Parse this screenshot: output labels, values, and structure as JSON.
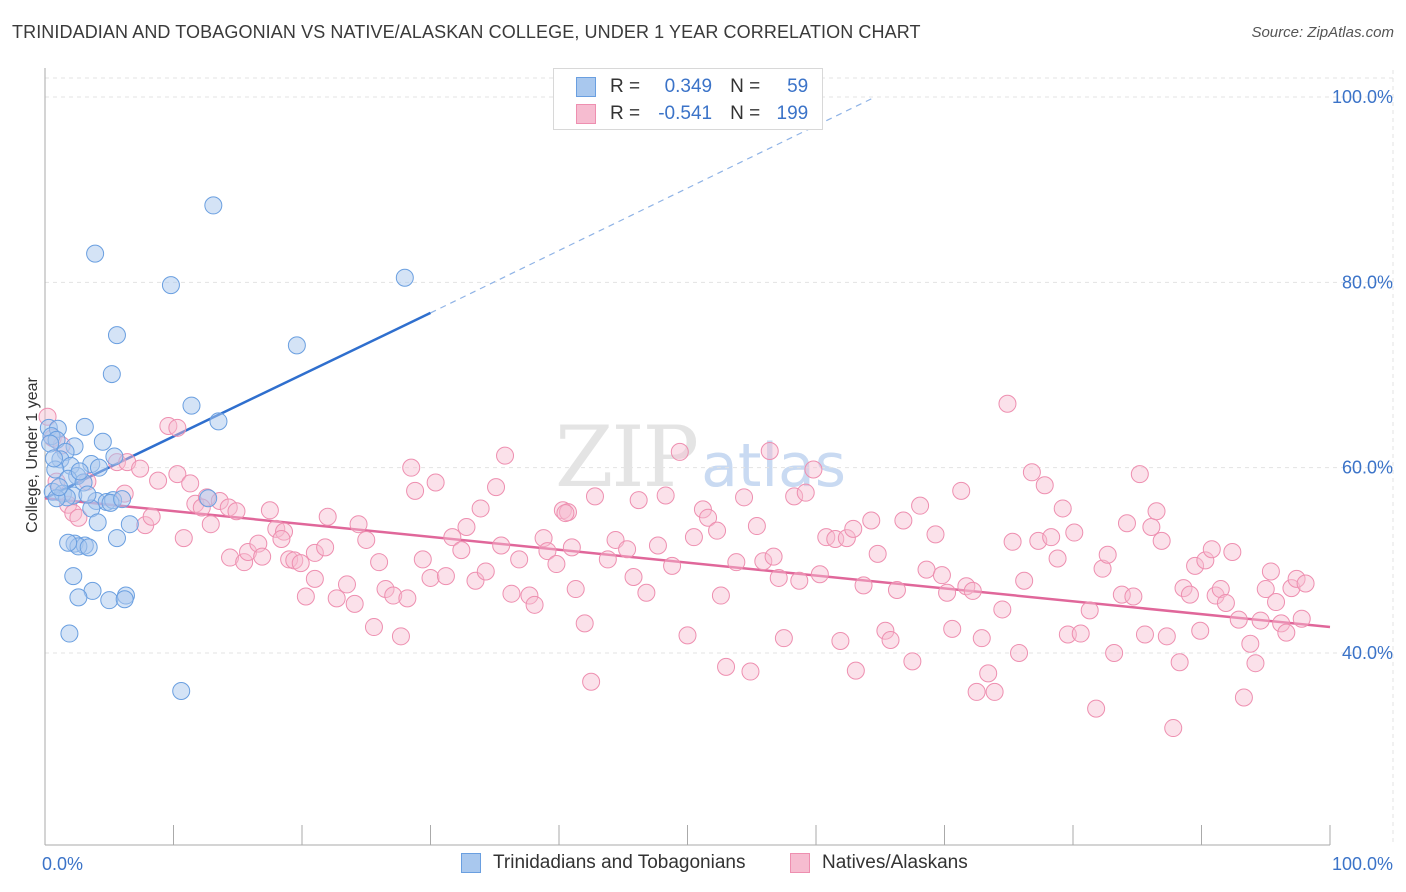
{
  "header": {
    "title": "TRINIDADIAN AND TOBAGONIAN VS NATIVE/ALASKAN COLLEGE, UNDER 1 YEAR CORRELATION CHART",
    "source": "Source: ZipAtlas.com"
  },
  "watermark": {
    "zip": "ZIP",
    "atlas": "atlas"
  },
  "stats_legend": {
    "r_label": "R =",
    "n_label": "N =",
    "rows": [
      {
        "r": "0.349",
        "n": "59"
      },
      {
        "r": "-0.541",
        "n": "199"
      }
    ]
  },
  "colors": {
    "blue_fill": "#a9c8ee",
    "blue_stroke": "#6a9fe0",
    "blue_line": "#2f6fce",
    "pink_fill": "#f6bcd0",
    "pink_stroke": "#ee8fb0",
    "pink_line": "#e0679a",
    "tick_text": "#3b73c8",
    "grid": "#e3e3e3"
  },
  "chart_data": {
    "type": "scatter",
    "title": "TRINIDADIAN AND TOBAGONIAN VS NATIVE/ALASKAN COLLEGE, UNDER 1 YEAR CORRELATION CHART",
    "xlabel": "",
    "ylabel": "College, Under 1 year",
    "xlim": [
      0,
      100
    ],
    "ylim": [
      20,
      102
    ],
    "x_tick_labels": [
      "0.0%",
      "100.0%"
    ],
    "y_ticks": [
      40,
      60,
      80,
      100
    ],
    "y_tick_labels": [
      "40.0%",
      "60.0%",
      "80.0%",
      "100.0%"
    ],
    "grid": true,
    "legend_position": "bottom",
    "series": [
      {
        "name": "Trinidadians and Tobagonians",
        "color": "#a9c8ee",
        "r": 0.349,
        "n": 59,
        "trend": {
          "x": [
            0,
            30
          ],
          "y": [
            56.7,
            76.7
          ],
          "extended_to": [
            64.6,
            100
          ]
        },
        "points": [
          [
            13.1,
            88.3
          ],
          [
            3.9,
            83.1
          ],
          [
            28.0,
            80.5
          ],
          [
            9.8,
            79.7
          ],
          [
            5.6,
            74.3
          ],
          [
            19.6,
            73.2
          ],
          [
            5.2,
            70.1
          ],
          [
            11.4,
            66.7
          ],
          [
            13.5,
            65.0
          ],
          [
            0.3,
            64.3
          ],
          [
            1.0,
            64.2
          ],
          [
            3.1,
            64.4
          ],
          [
            0.5,
            63.4
          ],
          [
            0.9,
            63.0
          ],
          [
            4.5,
            62.8
          ],
          [
            2.3,
            62.3
          ],
          [
            1.6,
            61.7
          ],
          [
            5.4,
            61.2
          ],
          [
            1.2,
            60.9
          ],
          [
            3.6,
            60.4
          ],
          [
            2.0,
            60.2
          ],
          [
            0.8,
            59.8
          ],
          [
            4.2,
            60.0
          ],
          [
            2.5,
            59.1
          ],
          [
            1.8,
            58.8
          ],
          [
            3.0,
            58.4
          ],
          [
            0.6,
            57.4
          ],
          [
            1.4,
            57.2
          ],
          [
            2.2,
            57.0
          ],
          [
            1.7,
            56.8
          ],
          [
            0.9,
            56.7
          ],
          [
            4.0,
            56.4
          ],
          [
            4.8,
            56.3
          ],
          [
            5.3,
            56.5
          ],
          [
            5.1,
            56.2
          ],
          [
            12.7,
            56.7
          ],
          [
            3.6,
            55.6
          ],
          [
            4.1,
            54.1
          ],
          [
            6.6,
            53.9
          ],
          [
            5.6,
            52.4
          ],
          [
            2.3,
            51.8
          ],
          [
            3.1,
            51.6
          ],
          [
            2.6,
            51.5
          ],
          [
            1.8,
            51.9
          ],
          [
            3.4,
            51.4
          ],
          [
            2.2,
            48.3
          ],
          [
            3.7,
            46.7
          ],
          [
            6.3,
            46.2
          ],
          [
            2.6,
            46.0
          ],
          [
            5.0,
            45.7
          ],
          [
            6.2,
            45.8
          ],
          [
            1.9,
            42.1
          ],
          [
            10.6,
            35.9
          ],
          [
            0.4,
            62.6
          ],
          [
            1.1,
            57.9
          ],
          [
            2.7,
            59.6
          ],
          [
            0.7,
            61.0
          ],
          [
            6.0,
            56.6
          ],
          [
            3.3,
            57.1
          ]
        ]
      },
      {
        "name": "Natives/Alaskans",
        "color": "#f6bcd0",
        "r": -0.541,
        "n": 199,
        "trend": {
          "x": [
            0,
            100
          ],
          "y": [
            56.7,
            42.8
          ]
        },
        "points": [
          [
            0.2,
            65.5
          ],
          [
            0.6,
            63.2
          ],
          [
            1.3,
            62.4
          ],
          [
            0.9,
            58.5
          ],
          [
            1.8,
            56.0
          ],
          [
            3.3,
            58.5
          ],
          [
            2.2,
            55.1
          ],
          [
            2.6,
            54.6
          ],
          [
            5.6,
            60.6
          ],
          [
            6.4,
            60.6
          ],
          [
            7.4,
            59.9
          ],
          [
            9.6,
            64.5
          ],
          [
            10.3,
            64.3
          ],
          [
            8.8,
            58.6
          ],
          [
            6.2,
            57.2
          ],
          [
            7.8,
            53.8
          ],
          [
            8.3,
            54.7
          ],
          [
            10.3,
            59.3
          ],
          [
            11.3,
            58.3
          ],
          [
            11.7,
            56.1
          ],
          [
            12.6,
            56.8
          ],
          [
            12.2,
            55.7
          ],
          [
            12.9,
            53.9
          ],
          [
            13.6,
            56.4
          ],
          [
            14.3,
            55.7
          ],
          [
            14.9,
            55.3
          ],
          [
            10.8,
            52.4
          ],
          [
            14.4,
            50.3
          ],
          [
            15.5,
            49.8
          ],
          [
            15.8,
            50.9
          ],
          [
            16.6,
            51.8
          ],
          [
            16.9,
            50.4
          ],
          [
            17.5,
            55.4
          ],
          [
            18.0,
            53.4
          ],
          [
            18.6,
            53.1
          ],
          [
            18.4,
            52.3
          ],
          [
            19.0,
            50.1
          ],
          [
            19.4,
            50.0
          ],
          [
            19.9,
            49.7
          ],
          [
            20.3,
            46.1
          ],
          [
            21.0,
            50.8
          ],
          [
            21.8,
            51.4
          ],
          [
            21.0,
            48.0
          ],
          [
            22.0,
            54.7
          ],
          [
            22.7,
            45.9
          ],
          [
            23.5,
            47.4
          ],
          [
            24.4,
            53.9
          ],
          [
            24.1,
            45.3
          ],
          [
            25.0,
            52.2
          ],
          [
            25.6,
            42.8
          ],
          [
            26.0,
            49.8
          ],
          [
            26.5,
            46.9
          ],
          [
            27.1,
            46.2
          ],
          [
            27.7,
            41.8
          ],
          [
            28.2,
            45.9
          ],
          [
            28.5,
            60.0
          ],
          [
            28.8,
            57.5
          ],
          [
            29.4,
            50.1
          ],
          [
            30.0,
            48.1
          ],
          [
            30.4,
            58.4
          ],
          [
            31.2,
            48.3
          ],
          [
            31.7,
            52.5
          ],
          [
            32.4,
            51.1
          ],
          [
            32.8,
            53.6
          ],
          [
            33.5,
            47.8
          ],
          [
            33.9,
            55.6
          ],
          [
            34.3,
            48.8
          ],
          [
            35.1,
            57.9
          ],
          [
            35.5,
            51.6
          ],
          [
            35.8,
            61.3
          ],
          [
            36.3,
            46.4
          ],
          [
            36.9,
            50.1
          ],
          [
            37.7,
            46.2
          ],
          [
            38.1,
            45.2
          ],
          [
            38.8,
            52.4
          ],
          [
            39.1,
            51.0
          ],
          [
            39.8,
            49.6
          ],
          [
            40.3,
            55.4
          ],
          [
            40.7,
            55.2
          ],
          [
            41.0,
            51.4
          ],
          [
            41.3,
            46.9
          ],
          [
            40.5,
            55.1
          ],
          [
            42.0,
            43.2
          ],
          [
            42.5,
            36.9
          ],
          [
            42.8,
            56.9
          ],
          [
            43.8,
            50.1
          ],
          [
            44.4,
            52.2
          ],
          [
            45.3,
            51.2
          ],
          [
            45.8,
            48.2
          ],
          [
            46.2,
            56.5
          ],
          [
            46.8,
            46.5
          ],
          [
            47.7,
            51.6
          ],
          [
            48.3,
            57.0
          ],
          [
            48.8,
            49.4
          ],
          [
            49.4,
            61.7
          ],
          [
            50.0,
            41.9
          ],
          [
            50.5,
            52.5
          ],
          [
            51.2,
            55.5
          ],
          [
            51.6,
            54.6
          ],
          [
            52.3,
            53.2
          ],
          [
            52.6,
            46.2
          ],
          [
            53.0,
            38.5
          ],
          [
            53.8,
            49.8
          ],
          [
            54.4,
            56.8
          ],
          [
            54.9,
            38.0
          ],
          [
            55.4,
            53.7
          ],
          [
            55.9,
            49.9
          ],
          [
            56.4,
            61.8
          ],
          [
            56.7,
            50.4
          ],
          [
            57.1,
            48.1
          ],
          [
            57.5,
            41.6
          ],
          [
            58.3,
            56.9
          ],
          [
            58.7,
            47.8
          ],
          [
            59.2,
            57.3
          ],
          [
            59.8,
            59.8
          ],
          [
            60.3,
            48.5
          ],
          [
            60.8,
            52.5
          ],
          [
            61.5,
            52.3
          ],
          [
            61.9,
            41.3
          ],
          [
            62.4,
            52.4
          ],
          [
            62.9,
            53.4
          ],
          [
            63.1,
            38.1
          ],
          [
            63.7,
            47.3
          ],
          [
            64.3,
            54.3
          ],
          [
            64.8,
            50.7
          ],
          [
            65.4,
            42.4
          ],
          [
            65.8,
            41.4
          ],
          [
            66.3,
            46.8
          ],
          [
            66.8,
            54.3
          ],
          [
            67.5,
            39.1
          ],
          [
            68.1,
            55.9
          ],
          [
            68.6,
            49.0
          ],
          [
            69.3,
            52.8
          ],
          [
            69.8,
            48.4
          ],
          [
            70.2,
            46.5
          ],
          [
            70.6,
            42.6
          ],
          [
            71.3,
            57.5
          ],
          [
            71.7,
            47.2
          ],
          [
            72.2,
            46.7
          ],
          [
            72.5,
            35.8
          ],
          [
            72.9,
            41.6
          ],
          [
            73.4,
            37.8
          ],
          [
            73.9,
            35.8
          ],
          [
            74.5,
            44.7
          ],
          [
            74.9,
            66.9
          ],
          [
            75.3,
            52.0
          ],
          [
            75.8,
            40.0
          ],
          [
            76.2,
            47.8
          ],
          [
            76.8,
            59.5
          ],
          [
            77.3,
            52.1
          ],
          [
            77.8,
            58.1
          ],
          [
            78.3,
            52.5
          ],
          [
            78.8,
            50.2
          ],
          [
            79.2,
            55.6
          ],
          [
            79.6,
            42.0
          ],
          [
            80.1,
            53.0
          ],
          [
            80.6,
            42.1
          ],
          [
            81.3,
            44.6
          ],
          [
            81.8,
            34.0
          ],
          [
            82.3,
            49.1
          ],
          [
            82.7,
            50.6
          ],
          [
            83.2,
            40.0
          ],
          [
            83.8,
            46.3
          ],
          [
            84.2,
            54.0
          ],
          [
            84.7,
            46.1
          ],
          [
            85.2,
            59.3
          ],
          [
            85.6,
            42.0
          ],
          [
            86.1,
            53.6
          ],
          [
            86.5,
            55.3
          ],
          [
            86.9,
            52.1
          ],
          [
            87.3,
            41.8
          ],
          [
            87.8,
            31.9
          ],
          [
            88.3,
            39.0
          ],
          [
            88.6,
            47.0
          ],
          [
            89.1,
            46.3
          ],
          [
            89.5,
            49.4
          ],
          [
            89.9,
            42.4
          ],
          [
            90.3,
            50.0
          ],
          [
            90.8,
            51.2
          ],
          [
            91.1,
            46.2
          ],
          [
            91.5,
            46.9
          ],
          [
            91.9,
            45.4
          ],
          [
            92.4,
            50.9
          ],
          [
            92.9,
            43.6
          ],
          [
            93.3,
            35.2
          ],
          [
            93.8,
            41.0
          ],
          [
            94.2,
            38.9
          ],
          [
            94.6,
            43.5
          ],
          [
            95.0,
            46.9
          ],
          [
            95.4,
            48.8
          ],
          [
            95.8,
            45.5
          ],
          [
            96.2,
            43.2
          ],
          [
            96.6,
            42.2
          ],
          [
            97.0,
            47.0
          ],
          [
            97.4,
            48.0
          ],
          [
            97.8,
            43.7
          ],
          [
            98.1,
            47.5
          ]
        ]
      }
    ]
  },
  "bottom_legend": {
    "items": [
      {
        "label": "Trinidadians and Tobagonians"
      },
      {
        "label": "Natives/Alaskans"
      }
    ]
  }
}
